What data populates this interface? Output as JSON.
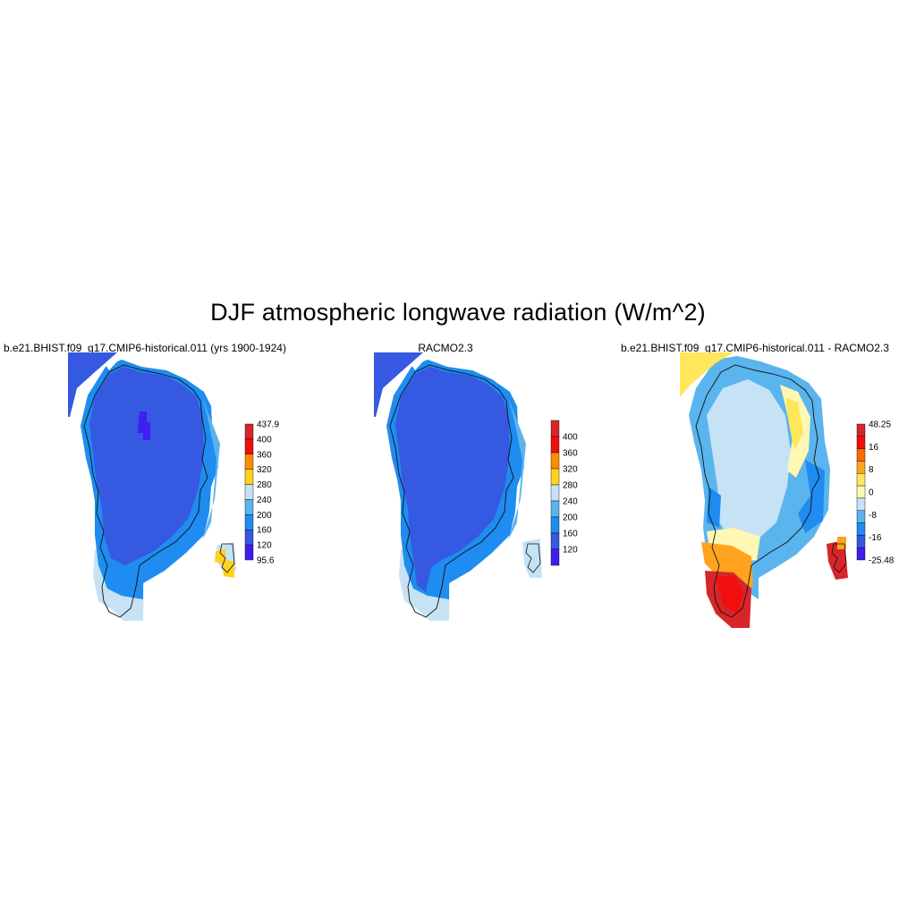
{
  "title": "DJF atmospheric longwave radiation (W/m^2)",
  "panels": [
    {
      "id": "model",
      "title": "b.e21.BHIST.f09_g17.CMIP6-historical.011 (yrs 1900-1924)",
      "colorbar": {
        "labels": [
          "437.9",
          "400",
          "360",
          "320",
          "280",
          "240",
          "200",
          "160",
          "120",
          "95.6"
        ],
        "colors": [
          "#d7262b",
          "#f00e0e",
          "#ff8c00",
          "#ffd21e",
          "#c6e2f5",
          "#5ab4ee",
          "#1e8cf0",
          "#3559e0",
          "#3f1ff0"
        ]
      }
    },
    {
      "id": "obs",
      "title": "RACMO2.3",
      "colorbar": {
        "labels": [
          "400",
          "360",
          "320",
          "280",
          "240",
          "200",
          "160",
          "120"
        ],
        "colors": [
          "#d7262b",
          "#f00e0e",
          "#ff8c00",
          "#ffd21e",
          "#c6e2f5",
          "#5ab4ee",
          "#1e8cf0",
          "#3559e0",
          "#3f1ff0"
        ]
      }
    },
    {
      "id": "diff",
      "title": "b.e21.BHIST.f09_g17.CMIP6-historical.011 - RACMO2.3",
      "colorbar": {
        "labels": [
          "48.25",
          "16",
          "8",
          "0",
          "-8",
          "-16",
          "-25.48"
        ],
        "colors": [
          "#d7262b",
          "#f00e0e",
          "#ff6a00",
          "#ffa31e",
          "#ffe65a",
          "#fff7b4",
          "#c6e2f5",
          "#5ab4ee",
          "#1e8cf0",
          "#3559e0",
          "#3f1ff0"
        ]
      }
    }
  ]
}
